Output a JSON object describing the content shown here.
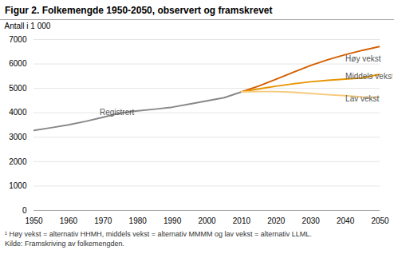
{
  "chart_data": {
    "type": "line",
    "title": "Figur 2. Folkemengde 1950-2050, observert og framskrevet",
    "ylabel": "Antall i 1 000",
    "xlim": [
      1950,
      2050
    ],
    "ylim": [
      0,
      7000
    ],
    "xticks": [
      1950,
      1960,
      1970,
      1980,
      1990,
      2000,
      2010,
      2020,
      2030,
      2040,
      2050
    ],
    "yticks": [
      0,
      1000,
      2000,
      3000,
      4000,
      5000,
      6000,
      7000
    ],
    "grid": true,
    "series": [
      {
        "name": "Registrert",
        "color": "#888888",
        "x": [
          1950,
          1955,
          1960,
          1965,
          1970,
          1975,
          1980,
          1985,
          1990,
          1995,
          2000,
          2005,
          2010
        ],
        "values": [
          3280,
          3390,
          3510,
          3650,
          3820,
          3990,
          4080,
          4150,
          4230,
          4360,
          4490,
          4620,
          4858
        ]
      },
      {
        "name": "Høy vekst",
        "color": "#d45f00",
        "x": [
          2010,
          2015,
          2020,
          2025,
          2030,
          2035,
          2040,
          2045,
          2050
        ],
        "values": [
          4858,
          5100,
          5380,
          5660,
          5940,
          6180,
          6380,
          6560,
          6720
        ]
      },
      {
        "name": "Middels vekst",
        "color": "#e89400",
        "x": [
          2010,
          2015,
          2020,
          2025,
          2030,
          2035,
          2040,
          2045,
          2050
        ],
        "values": [
          4858,
          4980,
          5090,
          5190,
          5270,
          5330,
          5380,
          5430,
          5580
        ]
      },
      {
        "name": "Lav vekst",
        "color": "#f5c97a",
        "x": [
          2010,
          2015,
          2020,
          2025,
          2030,
          2035,
          2040,
          2045,
          2050
        ],
        "values": [
          4858,
          4870,
          4870,
          4840,
          4790,
          4740,
          4700,
          4650,
          4640
        ]
      }
    ],
    "annotations": [
      {
        "text": "Registrert",
        "x": 1969,
        "y": 4020
      },
      {
        "text": "Høy vekst",
        "x": 2040,
        "y": 6200
      },
      {
        "text": "Middels vekst",
        "x": 2040,
        "y": 5480
      },
      {
        "text": "Lav vekst",
        "x": 2040,
        "y": 4560
      }
    ],
    "footnotes": [
      "¹ Høy vekst = alternativ HHMH, middels vekst = alternativ MMMM og lav vekst = alternativ LLML.",
      "Kilde: Framskriving av folkemengden."
    ]
  }
}
